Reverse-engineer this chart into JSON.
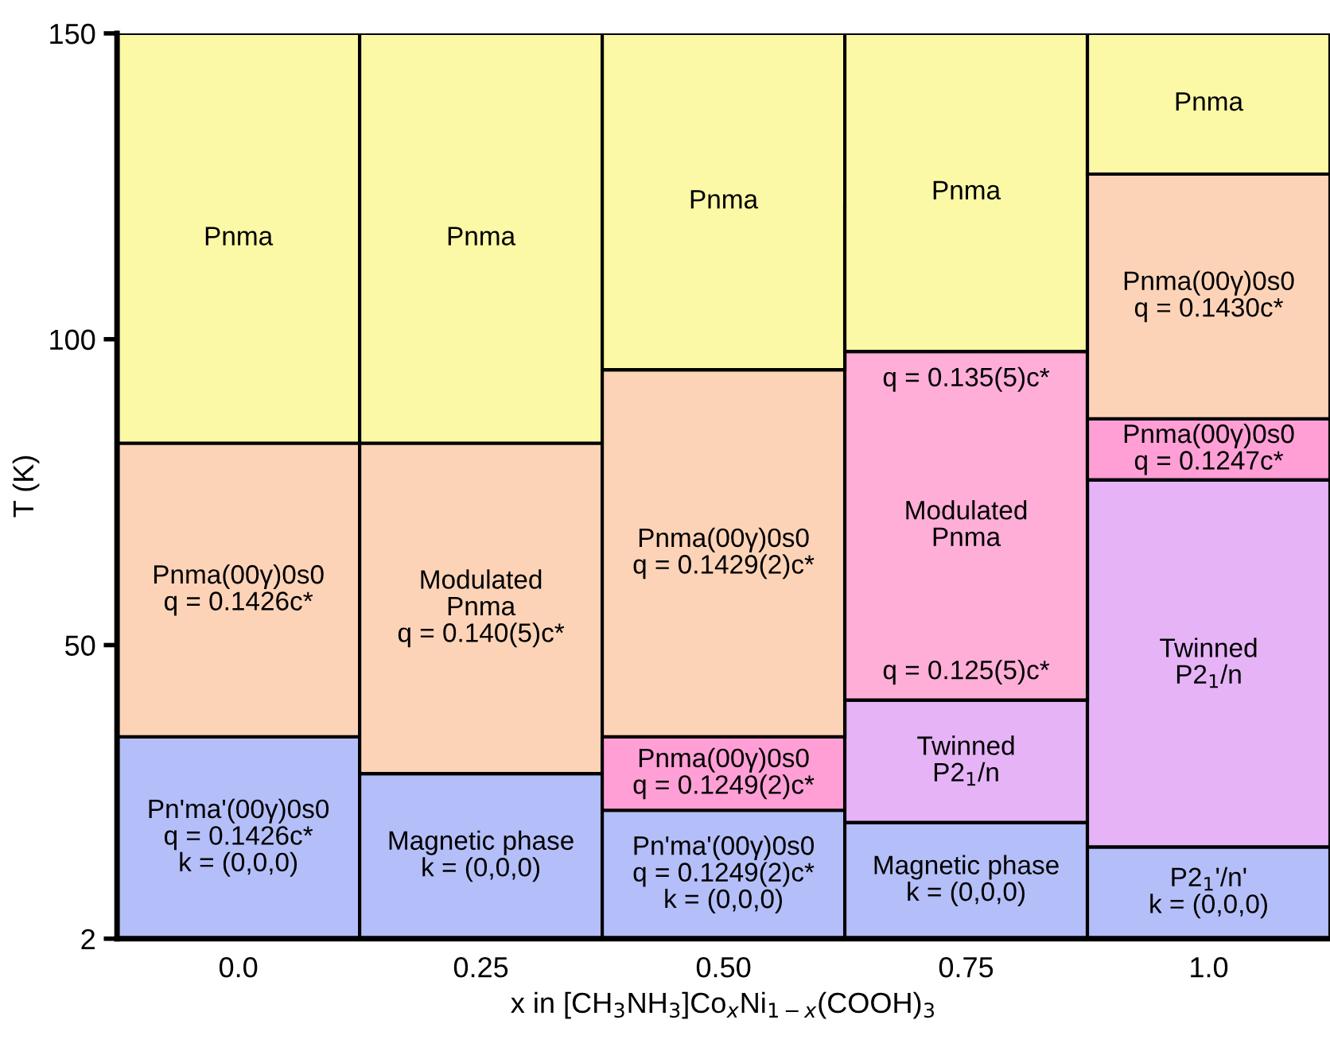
{
  "chart_data": {
    "type": "bar",
    "xlabel": "x in [CH$_{3}$NH$_{3}$]Co$_{x}$Ni$_{1−x}$(COOH)$_{3}$",
    "ylabel": "T (K)",
    "categories": [
      "0.0",
      "0.25",
      "0.50",
      "0.75",
      "1.0"
    ],
    "series": [
      {
        "colors": [
          "#b4bef8",
          "#b4bef8",
          "#b4bef8",
          "#b4bef8",
          "#b4bef8"
        ],
        "base": [
          2,
          2,
          2,
          2,
          2
        ],
        "values": [
          33,
          27,
          21,
          19,
          15
        ],
        "value_labels": [
          "Pn'ma'(00γ)0s0\nq = 0.1426c*\nk = (0,0,0)",
          "Magnetic phase\nk = (0,0,0)",
          "Pn'ma'(00γ)0s0\nq = 0.1249(2)c*\nk = (0,0,0)",
          "Magnetic phase\nk = (0,0,0)",
          "P2$_{1}$'/n'\nk = (0,0,0)"
        ]
      },
      {
        "colors": [
          "#fdd3b8",
          "#fdd3b8",
          "#ff9fd6",
          "#e6b3f7",
          "#e6b3f7"
        ],
        "base": [
          35,
          29,
          23,
          21,
          17
        ],
        "values": [
          48,
          54,
          12,
          20,
          60
        ],
        "value_labels": [
          "Pnma(00γ)0s0\nq = 0.1426c*",
          "Modulated\nPnma\nq = 0.140(5)c*",
          "Pnma(00γ)0s0\nq = 0.1249(2)c*",
          "Twinned\nP2$_{1}$/n",
          "Twinned\nP2$_{1}$/n"
        ]
      },
      {
        "colors": [
          "#fbf8a6",
          "#fbf8a6",
          "#fdd3b8",
          "#ffaed8",
          "#ff9fd6"
        ],
        "base": [
          83,
          83,
          35,
          41,
          77
        ],
        "values": [
          67,
          67,
          60,
          57,
          10
        ],
        "value_labels": [
          "Pnma",
          "Pnma",
          "Pnma(00γ)0s0\nq = 0.1429(2)c*",
          "q = 0.135(5)c*\n\n\n\n\nModulated\nPnma\n\n\n\n\nq = 0.125(5)c*",
          "Pnma(00γ)0s0\nq = 0.1247c*"
        ]
      },
      {
        "colors": [
          null,
          null,
          "#fbf8a6",
          "#fbf8a6",
          "#fdd3b8"
        ],
        "base": [
          null,
          null,
          95,
          98,
          87
        ],
        "values": [
          null,
          null,
          55,
          52,
          40
        ],
        "value_labels": [
          null,
          null,
          "Pnma",
          "Pnma",
          "Pnma(00γ)0s0\nq = 0.1430c*"
        ]
      },
      {
        "colors": [
          null,
          null,
          null,
          null,
          "#fbf8a6"
        ],
        "base": [
          null,
          null,
          null,
          null,
          127
        ],
        "values": [
          null,
          null,
          null,
          null,
          23
        ],
        "value_labels": [
          null,
          null,
          null,
          null,
          "Pnma"
        ]
      }
    ],
    "ylim": [
      2,
      150
    ],
    "yticks": [
      2,
      50,
      100,
      150
    ],
    "grid": false,
    "legend": false
  }
}
